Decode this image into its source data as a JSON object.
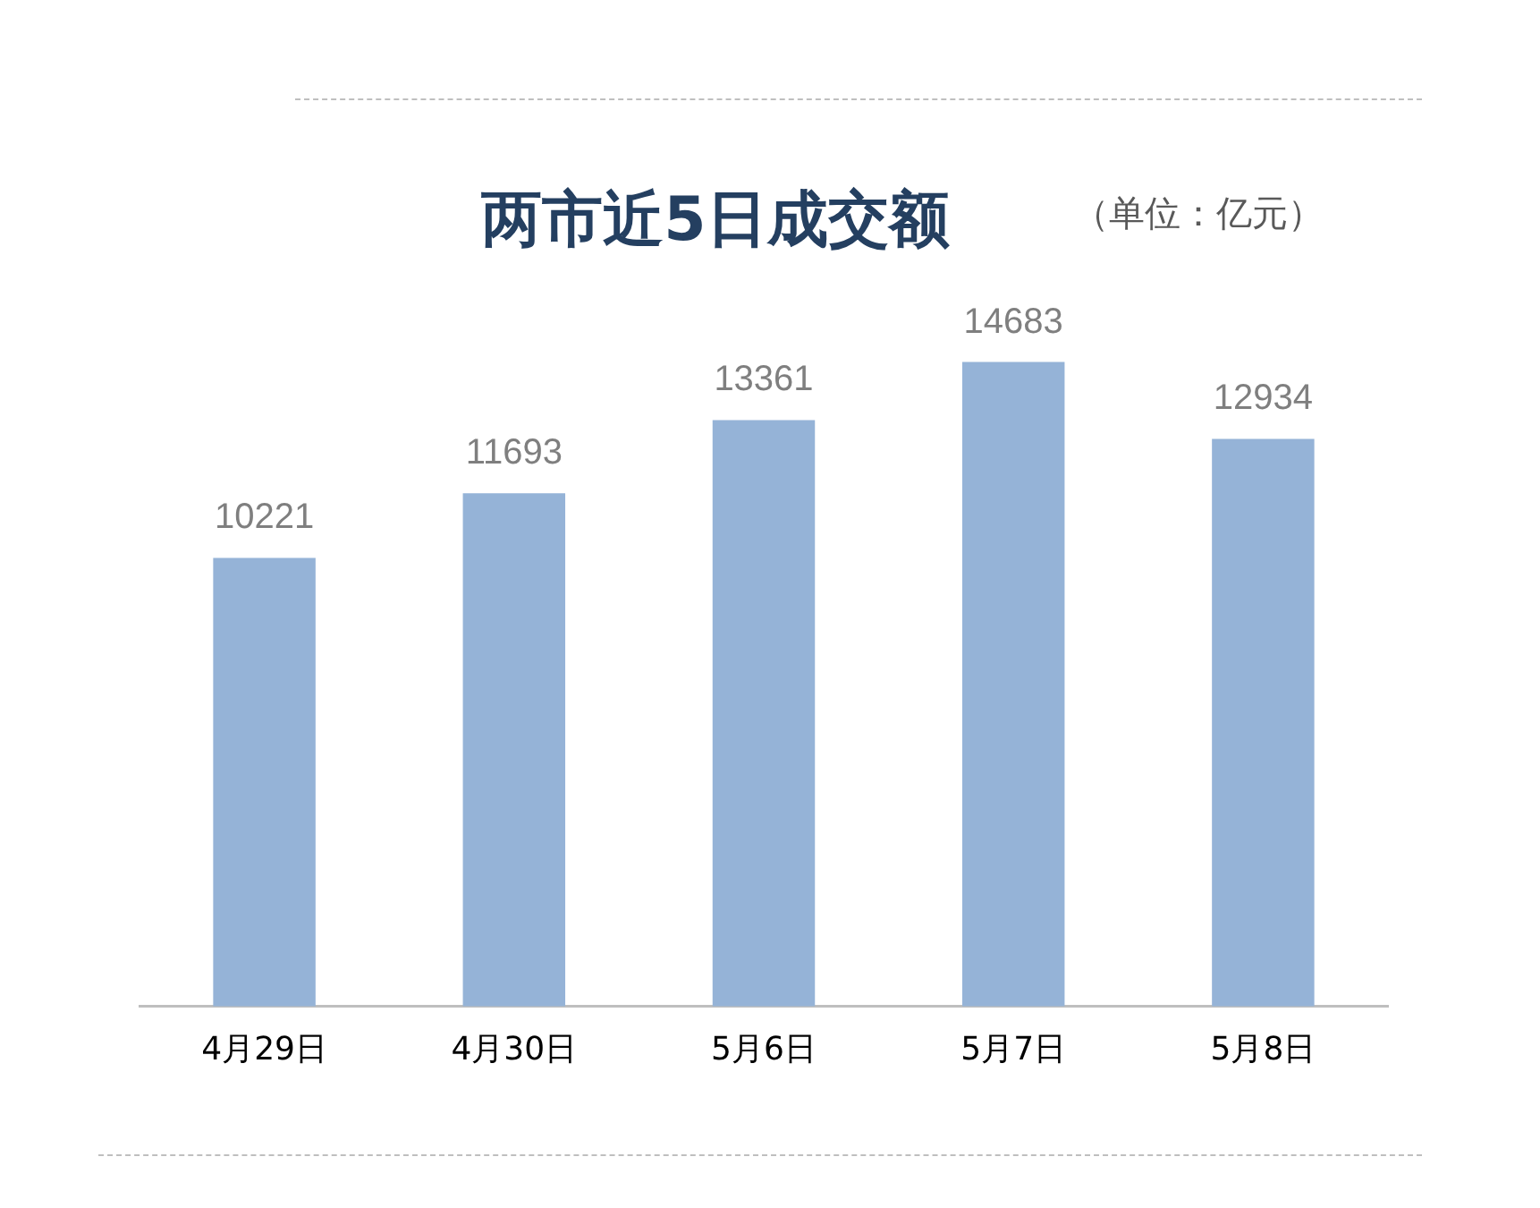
{
  "chart_data": {
    "type": "bar",
    "title": "两市近5日成交额",
    "subtitle": "（单位：亿元）",
    "categories": [
      "4月29日",
      "4月30日",
      "5月6日",
      "5月7日",
      "5月8日"
    ],
    "values": [
      10221,
      11693,
      13361,
      14683,
      12934
    ],
    "color": "#95b3d7",
    "data_labels": true,
    "grid": false,
    "legend": false,
    "tick_labels": "x"
  }
}
